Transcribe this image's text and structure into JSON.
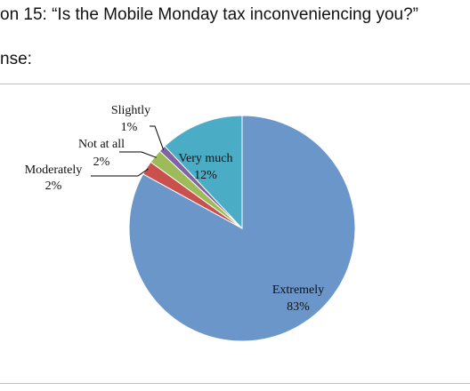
{
  "header": {
    "question": "on 15: “Is the Mobile Monday tax inconveniencing you?”",
    "response": "nse:"
  },
  "chart_data": {
    "type": "pie",
    "categories": [
      "Extremely",
      "Moderately",
      "Not at all",
      "Slightly",
      "Very much"
    ],
    "values": [
      83,
      2,
      2,
      1,
      12
    ],
    "value_labels": [
      "83%",
      "2%",
      "2%",
      "1%",
      "12%"
    ],
    "colors": [
      "#6a96c9",
      "#c9504c",
      "#9dbb59",
      "#8064a2",
      "#4bacc6"
    ],
    "title": "",
    "legend": "none",
    "start_angle": "12 o'clock, clockwise"
  }
}
